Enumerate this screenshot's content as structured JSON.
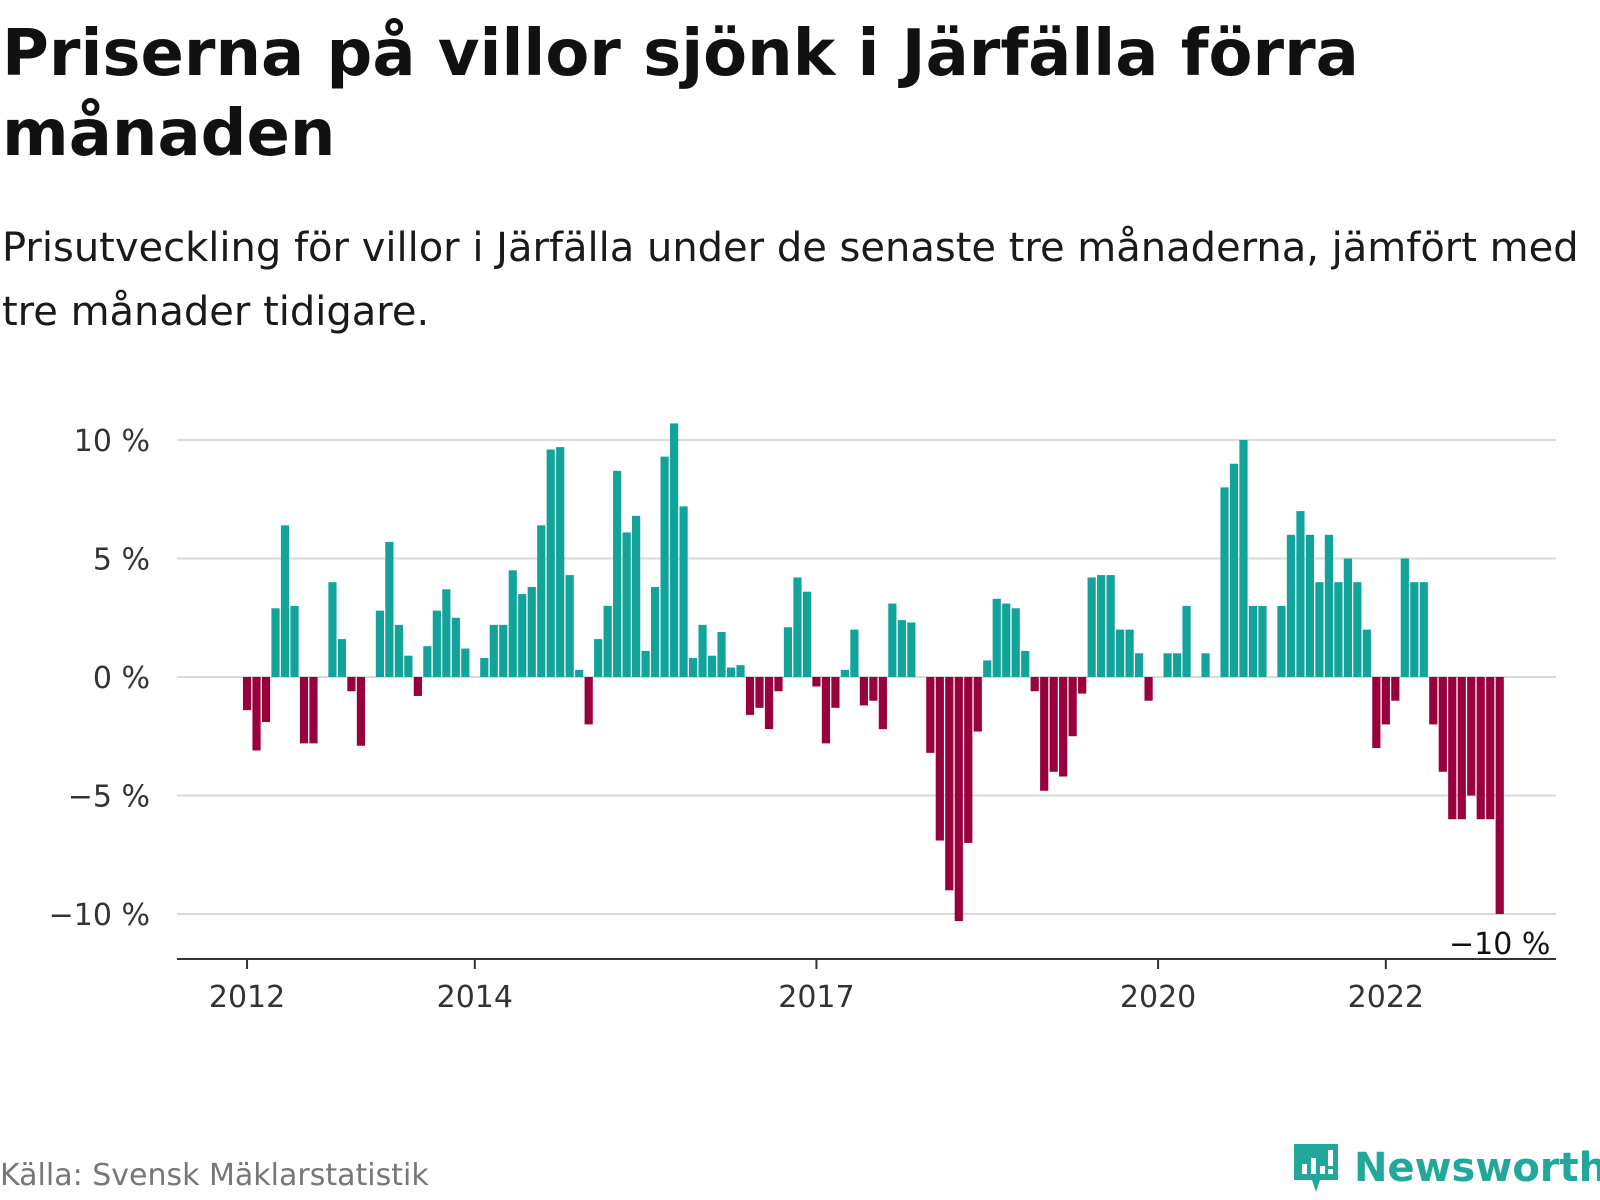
{
  "header": {
    "title": "Priserna på villor sjönk i Järfälla förra månaden",
    "subtitle": "Prisutveckling för villor i Järfälla under de senaste tre månaderna, jämfört med tre månader tidigare."
  },
  "footer": {
    "source": "Källa: Svensk Mäklarstatistik",
    "brand": "Newsworthy"
  },
  "colors": {
    "positive": "#12a39a",
    "negative": "#98003e",
    "grid": "#d9d9d9",
    "axis": "#333333",
    "brand": "#21a89a"
  },
  "chart_data": {
    "type": "bar",
    "unit": "%",
    "x_start": "2011-07",
    "x_interval": "month",
    "ylim": [
      -11,
      11
    ],
    "yticks": [
      10,
      5,
      0,
      -5,
      -10
    ],
    "ytick_labels": [
      "10 %",
      "5 %",
      "0 %",
      "−5 %",
      "−10 %"
    ],
    "xtick_labels": [
      {
        "label": "2012",
        "date": "2012-01"
      },
      {
        "label": "2014",
        "date": "2014-01"
      },
      {
        "label": "2017",
        "date": "2017-01"
      },
      {
        "label": "2020",
        "date": "2020-01"
      },
      {
        "label": "2022",
        "date": "2022-01"
      }
    ],
    "grid": true,
    "legend": "none",
    "last_value_label": "−10 %",
    "values": [
      null,
      null,
      null,
      null,
      null,
      null,
      -1.4,
      -3.1,
      -1.9,
      2.9,
      6.4,
      3.0,
      -2.8,
      -2.8,
      null,
      4.0,
      1.6,
      -0.6,
      -2.9,
      null,
      2.8,
      5.7,
      2.2,
      0.9,
      -0.8,
      1.3,
      2.8,
      3.7,
      2.5,
      1.2,
      null,
      0.8,
      2.2,
      2.2,
      4.5,
      3.5,
      3.8,
      6.4,
      9.6,
      9.7,
      4.3,
      0.3,
      -2.0,
      1.6,
      3.0,
      8.7,
      6.1,
      6.8,
      1.1,
      3.8,
      9.3,
      10.7,
      7.2,
      0.8,
      2.2,
      0.9,
      1.9,
      0.4,
      0.5,
      -1.6,
      -1.3,
      -2.2,
      -0.6,
      2.1,
      4.2,
      3.6,
      -0.4,
      -2.8,
      -1.3,
      0.3,
      2.0,
      -1.2,
      -1.0,
      -2.2,
      3.1,
      2.4,
      2.3,
      null,
      -3.2,
      -6.9,
      -9.0,
      -10.3,
      -7.0,
      -2.3,
      0.7,
      3.3,
      3.1,
      2.9,
      1.1,
      -0.6,
      -4.8,
      -4.0,
      -4.2,
      -2.5,
      -0.7,
      4.2,
      4.3,
      4.3,
      2.0,
      2.0,
      1.0,
      -1.0,
      null,
      1.0,
      1.0,
      3.0,
      null,
      1.0,
      null,
      8.0,
      9.0,
      10.0,
      3.0,
      3.0,
      null,
      3.0,
      6.0,
      7.0,
      6.0,
      4.0,
      6.0,
      4.0,
      5.0,
      4.0,
      2.0,
      -3.0,
      -2.0,
      -1.0,
      5.0,
      4.0,
      4.0,
      -2.0,
      -4.0,
      -6.0,
      -6.0,
      -5.0,
      -6.0,
      -6.0,
      -10.0
    ]
  }
}
